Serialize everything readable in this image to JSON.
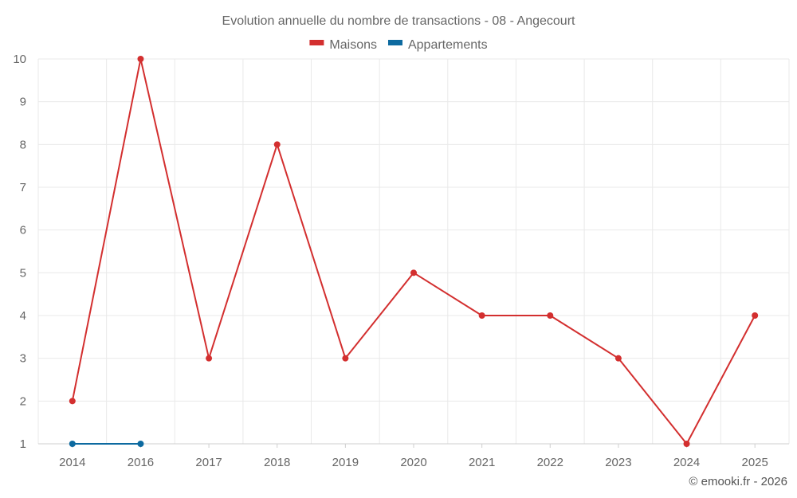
{
  "chart_data": {
    "type": "line",
    "title": "Evolution annuelle du nombre de transactions - 08 - Angecourt",
    "categories": [
      "2014",
      "2016",
      "2017",
      "2018",
      "2019",
      "2020",
      "2021",
      "2022",
      "2023",
      "2024",
      "2025"
    ],
    "series": [
      {
        "name": "Maisons",
        "color": "#d32f2f",
        "values": [
          2,
          10,
          3,
          8,
          3,
          5,
          4,
          4,
          3,
          1,
          4
        ]
      },
      {
        "name": "Appartements",
        "color": "#0d6aa0",
        "values": [
          1,
          1,
          null,
          null,
          null,
          null,
          null,
          null,
          null,
          null,
          null
        ]
      }
    ],
    "y_ticks": [
      "1",
      "2",
      "3",
      "4",
      "5",
      "6",
      "7",
      "8",
      "9",
      "10"
    ],
    "ylim": [
      1,
      10
    ],
    "grid": true,
    "legend_position": "top-center"
  },
  "credit": "© emooki.fr - 2026"
}
